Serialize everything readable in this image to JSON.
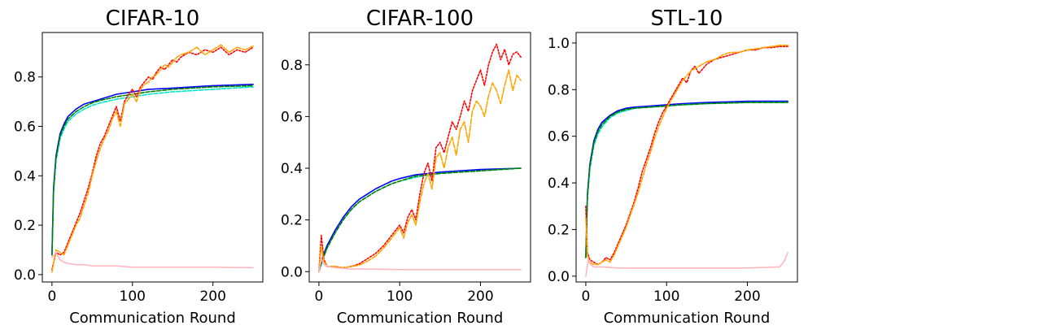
{
  "colors": {
    "blue": "#0000ff",
    "cyan": "#00e5c8",
    "green": "#008000",
    "red": "#ff0000",
    "orange": "#ffa500",
    "pink": "#ffb6c1"
  },
  "chart_data": [
    {
      "type": "line",
      "title": "CIFAR-10",
      "xlabel": "Communication Round",
      "ylabel": "",
      "xlim": [
        -12,
        262
      ],
      "ylim": [
        -0.03,
        0.98
      ],
      "xticks": [
        0,
        100,
        200
      ],
      "yticks": [
        0.0,
        0.2,
        0.4,
        0.6,
        0.8
      ],
      "ytick_labels": [
        "0.0",
        "0.2",
        "0.4",
        "0.6",
        "0.8"
      ],
      "legend": "none",
      "series": [
        {
          "color": "blue",
          "dash": "",
          "x": [
            0,
            2,
            5,
            10,
            15,
            20,
            30,
            40,
            50,
            60,
            80,
            100,
            120,
            150,
            200,
            250
          ],
          "y": [
            0.08,
            0.35,
            0.48,
            0.57,
            0.61,
            0.64,
            0.67,
            0.69,
            0.7,
            0.71,
            0.73,
            0.74,
            0.75,
            0.755,
            0.765,
            0.77
          ]
        },
        {
          "color": "cyan",
          "dash": "5 2",
          "x": [
            0,
            2,
            5,
            10,
            15,
            20,
            30,
            40,
            50,
            60,
            80,
            100,
            120,
            150,
            200,
            250
          ],
          "y": [
            0.08,
            0.33,
            0.46,
            0.55,
            0.59,
            0.62,
            0.65,
            0.67,
            0.685,
            0.695,
            0.71,
            0.72,
            0.73,
            0.74,
            0.75,
            0.76
          ]
        },
        {
          "color": "green",
          "dash": "5 2",
          "x": [
            0,
            2,
            5,
            10,
            15,
            20,
            30,
            40,
            50,
            60,
            80,
            100,
            120,
            150,
            200,
            250
          ],
          "y": [
            0.08,
            0.34,
            0.47,
            0.56,
            0.6,
            0.63,
            0.66,
            0.68,
            0.695,
            0.705,
            0.72,
            0.73,
            0.74,
            0.75,
            0.76,
            0.765
          ]
        },
        {
          "color": "red",
          "dash": "2 2",
          "x": [
            0,
            5,
            10,
            15,
            20,
            25,
            30,
            35,
            40,
            45,
            50,
            55,
            60,
            65,
            70,
            75,
            80,
            85,
            90,
            95,
            100,
            105,
            110,
            115,
            120,
            125,
            130,
            135,
            140,
            145,
            150,
            155,
            160,
            170,
            180,
            190,
            200,
            210,
            220,
            230,
            240,
            250
          ],
          "y": [
            0.02,
            0.09,
            0.08,
            0.09,
            0.13,
            0.17,
            0.21,
            0.25,
            0.3,
            0.35,
            0.41,
            0.48,
            0.53,
            0.56,
            0.6,
            0.64,
            0.68,
            0.62,
            0.7,
            0.73,
            0.75,
            0.72,
            0.76,
            0.78,
            0.8,
            0.79,
            0.82,
            0.84,
            0.83,
            0.85,
            0.87,
            0.86,
            0.88,
            0.9,
            0.89,
            0.91,
            0.9,
            0.92,
            0.89,
            0.91,
            0.9,
            0.92
          ]
        },
        {
          "color": "orange",
          "dash": "7 2",
          "x": [
            0,
            5,
            10,
            15,
            20,
            25,
            30,
            35,
            40,
            45,
            50,
            55,
            60,
            65,
            70,
            75,
            80,
            85,
            90,
            95,
            100,
            105,
            110,
            115,
            120,
            125,
            130,
            135,
            140,
            145,
            150,
            155,
            160,
            170,
            180,
            190,
            200,
            210,
            220,
            230,
            240,
            250
          ],
          "y": [
            0.01,
            0.1,
            0.09,
            0.08,
            0.12,
            0.16,
            0.2,
            0.23,
            0.28,
            0.33,
            0.4,
            0.46,
            0.51,
            0.55,
            0.58,
            0.63,
            0.66,
            0.6,
            0.69,
            0.71,
            0.73,
            0.7,
            0.75,
            0.77,
            0.78,
            0.8,
            0.81,
            0.83,
            0.85,
            0.84,
            0.86,
            0.88,
            0.89,
            0.9,
            0.92,
            0.89,
            0.91,
            0.93,
            0.9,
            0.92,
            0.91,
            0.925
          ]
        },
        {
          "color": "pink",
          "dash": "",
          "x": [
            0,
            5,
            10,
            15,
            20,
            30,
            40,
            50,
            60,
            80,
            100,
            150,
            200,
            250
          ],
          "y": [
            0.07,
            0.09,
            0.06,
            0.05,
            0.045,
            0.04,
            0.04,
            0.035,
            0.035,
            0.035,
            0.03,
            0.03,
            0.03,
            0.028
          ]
        }
      ]
    },
    {
      "type": "line",
      "title": "CIFAR-100",
      "xlabel": "Communication Round",
      "ylabel": "",
      "xlim": [
        -12,
        262
      ],
      "ylim": [
        -0.04,
        0.925
      ],
      "xticks": [
        0,
        100,
        200
      ],
      "yticks": [
        0.0,
        0.2,
        0.4,
        0.6,
        0.8
      ],
      "ytick_labels": [
        "0.0",
        "0.2",
        "0.4",
        "0.6",
        "0.8"
      ],
      "legend": "none",
      "series": [
        {
          "color": "blue",
          "dash": "",
          "x": [
            0,
            5,
            10,
            20,
            30,
            40,
            50,
            60,
            70,
            80,
            90,
            100,
            120,
            150,
            200,
            250
          ],
          "y": [
            0.0,
            0.06,
            0.1,
            0.16,
            0.21,
            0.25,
            0.28,
            0.3,
            0.32,
            0.335,
            0.35,
            0.36,
            0.375,
            0.385,
            0.395,
            0.4
          ]
        },
        {
          "color": "cyan",
          "dash": "5 2",
          "x": [
            0,
            5,
            10,
            20,
            30,
            40,
            50,
            60,
            70,
            80,
            90,
            100,
            120,
            150,
            200,
            250
          ],
          "y": [
            0.0,
            0.05,
            0.09,
            0.15,
            0.2,
            0.24,
            0.27,
            0.29,
            0.31,
            0.325,
            0.34,
            0.35,
            0.365,
            0.38,
            0.39,
            0.4
          ]
        },
        {
          "color": "green",
          "dash": "5 2",
          "x": [
            0,
            5,
            10,
            20,
            30,
            40,
            50,
            60,
            70,
            80,
            90,
            100,
            120,
            150,
            200,
            250
          ],
          "y": [
            0.0,
            0.05,
            0.09,
            0.15,
            0.2,
            0.24,
            0.27,
            0.29,
            0.31,
            0.325,
            0.34,
            0.35,
            0.37,
            0.38,
            0.39,
            0.4
          ]
        },
        {
          "color": "red",
          "dash": "2 2",
          "x": [
            0,
            3,
            6,
            10,
            20,
            30,
            40,
            50,
            60,
            70,
            80,
            90,
            100,
            105,
            110,
            115,
            120,
            125,
            130,
            135,
            140,
            145,
            150,
            155,
            160,
            165,
            170,
            175,
            180,
            185,
            190,
            195,
            200,
            205,
            210,
            215,
            220,
            225,
            230,
            235,
            240,
            245,
            250
          ],
          "y": [
            0.0,
            0.14,
            0.05,
            0.02,
            0.02,
            0.015,
            0.02,
            0.03,
            0.05,
            0.07,
            0.1,
            0.14,
            0.18,
            0.15,
            0.21,
            0.24,
            0.2,
            0.3,
            0.38,
            0.42,
            0.35,
            0.48,
            0.5,
            0.46,
            0.52,
            0.58,
            0.55,
            0.6,
            0.66,
            0.62,
            0.7,
            0.74,
            0.78,
            0.72,
            0.8,
            0.85,
            0.88,
            0.82,
            0.86,
            0.8,
            0.84,
            0.85,
            0.83
          ]
        },
        {
          "color": "orange",
          "dash": "7 2",
          "x": [
            0,
            3,
            6,
            10,
            20,
            30,
            40,
            50,
            60,
            70,
            80,
            90,
            100,
            105,
            110,
            115,
            120,
            125,
            130,
            135,
            140,
            145,
            150,
            155,
            160,
            165,
            170,
            175,
            180,
            185,
            190,
            195,
            200,
            205,
            210,
            215,
            220,
            225,
            230,
            235,
            240,
            245,
            250
          ],
          "y": [
            0.0,
            0.1,
            0.04,
            0.02,
            0.02,
            0.015,
            0.02,
            0.025,
            0.04,
            0.06,
            0.09,
            0.13,
            0.17,
            0.13,
            0.19,
            0.22,
            0.18,
            0.27,
            0.34,
            0.38,
            0.32,
            0.44,
            0.46,
            0.4,
            0.48,
            0.52,
            0.45,
            0.55,
            0.58,
            0.5,
            0.62,
            0.66,
            0.64,
            0.6,
            0.68,
            0.73,
            0.7,
            0.65,
            0.72,
            0.78,
            0.7,
            0.76,
            0.74
          ]
        },
        {
          "color": "pink",
          "dash": "",
          "x": [
            0,
            3,
            6,
            10,
            20,
            40,
            60,
            100,
            150,
            200,
            250
          ],
          "y": [
            0.0,
            0.05,
            0.03,
            0.02,
            0.015,
            0.01,
            0.01,
            0.008,
            0.008,
            0.008,
            0.008
          ]
        }
      ]
    },
    {
      "type": "line",
      "title": "STL-10",
      "xlabel": "Communication Round",
      "ylabel": "",
      "xlim": [
        -12,
        262
      ],
      "ylim": [
        -0.025,
        1.045
      ],
      "xticks": [
        0,
        100,
        200
      ],
      "yticks": [
        0.0,
        0.2,
        0.4,
        0.6,
        0.8,
        1.0
      ],
      "ytick_labels": [
        "0.0",
        "0.2",
        "0.4",
        "0.6",
        "0.8",
        "1.0"
      ],
      "legend": "none",
      "series": [
        {
          "color": "blue",
          "dash": "",
          "x": [
            0,
            2,
            5,
            10,
            15,
            20,
            30,
            40,
            50,
            60,
            80,
            100,
            120,
            150,
            200,
            250
          ],
          "y": [
            0.08,
            0.35,
            0.48,
            0.58,
            0.63,
            0.66,
            0.69,
            0.71,
            0.72,
            0.725,
            0.73,
            0.735,
            0.74,
            0.745,
            0.75,
            0.75
          ]
        },
        {
          "color": "cyan",
          "dash": "5 2",
          "x": [
            0,
            2,
            5,
            10,
            15,
            20,
            30,
            40,
            50,
            60,
            80,
            100,
            120,
            150,
            200,
            250
          ],
          "y": [
            0.08,
            0.33,
            0.46,
            0.56,
            0.61,
            0.64,
            0.68,
            0.7,
            0.71,
            0.72,
            0.725,
            0.73,
            0.735,
            0.74,
            0.745,
            0.745
          ]
        },
        {
          "color": "green",
          "dash": "5 2",
          "x": [
            0,
            2,
            5,
            10,
            15,
            20,
            30,
            40,
            50,
            60,
            80,
            100,
            120,
            150,
            200,
            250
          ],
          "y": [
            0.08,
            0.34,
            0.47,
            0.57,
            0.62,
            0.65,
            0.685,
            0.705,
            0.715,
            0.72,
            0.725,
            0.73,
            0.735,
            0.74,
            0.745,
            0.745
          ]
        },
        {
          "color": "red",
          "dash": "2 2",
          "x": [
            0,
            2,
            5,
            10,
            15,
            20,
            25,
            30,
            35,
            40,
            45,
            50,
            55,
            60,
            65,
            70,
            75,
            80,
            85,
            90,
            95,
            100,
            105,
            110,
            115,
            120,
            125,
            130,
            135,
            140,
            150,
            160,
            170,
            180,
            190,
            200,
            210,
            220,
            230,
            240,
            250
          ],
          "y": [
            0.3,
            0.1,
            0.07,
            0.06,
            0.05,
            0.06,
            0.08,
            0.07,
            0.1,
            0.14,
            0.18,
            0.22,
            0.27,
            0.32,
            0.38,
            0.45,
            0.5,
            0.55,
            0.61,
            0.66,
            0.7,
            0.73,
            0.76,
            0.79,
            0.82,
            0.85,
            0.83,
            0.88,
            0.9,
            0.87,
            0.91,
            0.93,
            0.94,
            0.95,
            0.96,
            0.97,
            0.97,
            0.98,
            0.98,
            0.985,
            0.985
          ]
        },
        {
          "color": "orange",
          "dash": "7 2",
          "x": [
            0,
            2,
            5,
            10,
            15,
            20,
            25,
            30,
            35,
            40,
            45,
            50,
            55,
            60,
            65,
            70,
            75,
            80,
            85,
            90,
            95,
            100,
            105,
            110,
            115,
            120,
            125,
            130,
            135,
            140,
            150,
            160,
            170,
            180,
            190,
            200,
            210,
            220,
            230,
            240,
            250
          ],
          "y": [
            0.25,
            0.09,
            0.06,
            0.05,
            0.05,
            0.06,
            0.07,
            0.06,
            0.09,
            0.13,
            0.17,
            0.21,
            0.26,
            0.31,
            0.36,
            0.42,
            0.48,
            0.53,
            0.59,
            0.64,
            0.68,
            0.72,
            0.75,
            0.78,
            0.81,
            0.84,
            0.86,
            0.88,
            0.89,
            0.9,
            0.92,
            0.93,
            0.95,
            0.96,
            0.96,
            0.97,
            0.975,
            0.98,
            0.985,
            0.99,
            0.99
          ]
        },
        {
          "color": "pink",
          "dash": "",
          "x": [
            0,
            3,
            6,
            10,
            20,
            40,
            60,
            100,
            150,
            200,
            240,
            245,
            250
          ],
          "y": [
            0.0,
            0.07,
            0.05,
            0.04,
            0.04,
            0.035,
            0.035,
            0.035,
            0.035,
            0.035,
            0.04,
            0.06,
            0.1
          ]
        }
      ]
    }
  ]
}
